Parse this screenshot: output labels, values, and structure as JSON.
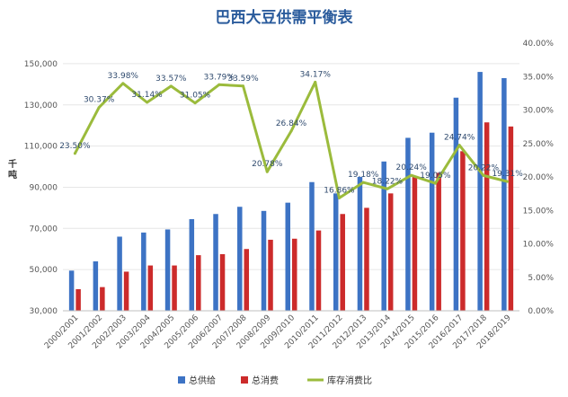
{
  "chart_data": {
    "type": "bar",
    "title": "巴西大豆供需平衡表",
    "ylabel": "千吨",
    "xlabel": "",
    "categories": [
      "2000/2001",
      "2001/2002",
      "2002/2003",
      "2003/2004",
      "2004/2005",
      "2005/2006",
      "2006/2007",
      "2007/2008",
      "2008/2009",
      "2009/2010",
      "2010/2011",
      "2011/2012",
      "2012/2013",
      "2013/2014",
      "2014/2015",
      "2015/2016",
      "2016/2017",
      "2017/2018",
      "2018/2019"
    ],
    "ylim": [
      30000,
      160000
    ],
    "y_ticks": [
      "30,000",
      "50,000",
      "70,000",
      "90,000",
      "110,000",
      "130,000",
      "150,000"
    ],
    "y2lim": [
      0,
      40
    ],
    "y2_ticks": [
      "0.00%",
      "5.00%",
      "10.00%",
      "15.00%",
      "20.00%",
      "25.00%",
      "30.00%",
      "35.00%",
      "40.00%"
    ],
    "grid": true,
    "legend_position": "bottom",
    "series": [
      {
        "name": "总供给",
        "kind": "bar",
        "color": "#3d73c4",
        "values": [
          49500,
          54000,
          66000,
          68000,
          69500,
          74500,
          77000,
          80500,
          78500,
          82500,
          92500,
          87000,
          95000,
          102500,
          114000,
          116500,
          133500,
          146000,
          143000
        ]
      },
      {
        "name": "总消费",
        "kind": "bar",
        "color": "#cc2b2b",
        "values": [
          40500,
          41500,
          49000,
          52000,
          52000,
          57000,
          57500,
          60000,
          64500,
          65000,
          69000,
          77000,
          80000,
          87000,
          95000,
          97000,
          107500,
          121500,
          119500
        ]
      },
      {
        "name": "库存消费比",
        "kind": "line",
        "axis": "right",
        "color": "#9bbb3c",
        "values": [
          23.5,
          30.37,
          33.98,
          31.14,
          33.57,
          31.05,
          33.79,
          33.59,
          20.78,
          26.84,
          34.17,
          16.86,
          19.18,
          18.22,
          20.24,
          19.05,
          24.74,
          20.22,
          19.31
        ],
        "labels": [
          "23.50%",
          "30.37%",
          "33.98%",
          "31.14%",
          "33.57%",
          "31.05%",
          "33.79%",
          "33.59%",
          "20.78%",
          "26.84%",
          "34.17%",
          "16.86%",
          "19.18%",
          "18.22%",
          "20.24%",
          "19.05%",
          "24.74%",
          "20.22%",
          "19.31%"
        ]
      }
    ]
  }
}
